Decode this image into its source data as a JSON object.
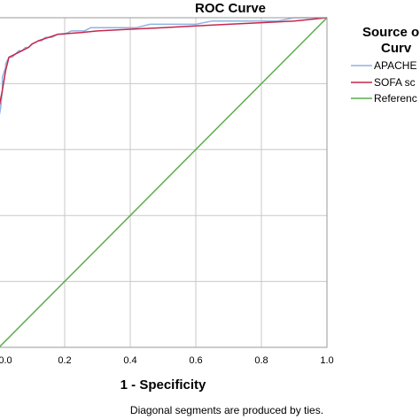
{
  "chart_data": {
    "type": "line",
    "title": "ROC Curve",
    "xlabel": "1 - Specificity",
    "ylabel": "",
    "xlim": [
      0,
      1
    ],
    "ylim": [
      0,
      1
    ],
    "x_ticks": [
      "0.0",
      "0.2",
      "0.4",
      "0.6",
      "0.8",
      "1.0"
    ],
    "grid": "vertical and horizontal",
    "legend": {
      "title_lines": [
        "Source o",
        "Curv"
      ],
      "placement": "right",
      "entries": [
        "APACHE",
        "SOFA sc",
        "Referenc"
      ]
    },
    "footnote": "Diagonal segments are produced by ties.",
    "series": [
      {
        "name": "APACHE",
        "color": "#8db4e2",
        "x": [
          0.0,
          0.0,
          0.005,
          0.01,
          0.01,
          0.02,
          0.02,
          0.03,
          0.04,
          0.05,
          0.06,
          0.07,
          0.08,
          0.09,
          0.1,
          0.12,
          0.13,
          0.14,
          0.16,
          0.18,
          0.2,
          0.22,
          0.24,
          0.26,
          0.28,
          0.3,
          0.34,
          0.38,
          0.42,
          0.46,
          0.5,
          0.55,
          0.6,
          0.65,
          0.7,
          0.75,
          0.8,
          0.85,
          0.9,
          0.95,
          1.0
        ],
        "y": [
          0.0,
          0.7,
          0.73,
          0.78,
          0.82,
          0.85,
          0.86,
          0.88,
          0.88,
          0.89,
          0.9,
          0.9,
          0.91,
          0.91,
          0.92,
          0.93,
          0.93,
          0.94,
          0.94,
          0.95,
          0.95,
          0.96,
          0.96,
          0.96,
          0.97,
          0.97,
          0.97,
          0.97,
          0.97,
          0.98,
          0.98,
          0.98,
          0.98,
          0.99,
          0.99,
          0.99,
          0.99,
          0.99,
          1.0,
          1.0,
          1.0
        ]
      },
      {
        "name": "SOFA sc",
        "color": "#c8264b",
        "x": [
          0.0,
          0.0,
          0.01,
          0.02,
          0.03,
          0.05,
          0.07,
          0.09,
          0.1,
          0.12,
          0.15,
          0.18,
          0.25,
          0.3,
          0.4,
          0.5,
          0.6,
          0.7,
          0.8,
          0.9,
          0.95,
          1.0
        ],
        "y": [
          0.0,
          0.73,
          0.78,
          0.84,
          0.88,
          0.89,
          0.9,
          0.91,
          0.92,
          0.93,
          0.94,
          0.95,
          0.955,
          0.96,
          0.965,
          0.97,
          0.975,
          0.98,
          0.985,
          0.99,
          0.995,
          1.0
        ]
      },
      {
        "name": "Referenc",
        "color": "#5aae48",
        "x": [
          0.0,
          1.0
        ],
        "y": [
          0.0,
          1.0
        ]
      }
    ]
  }
}
